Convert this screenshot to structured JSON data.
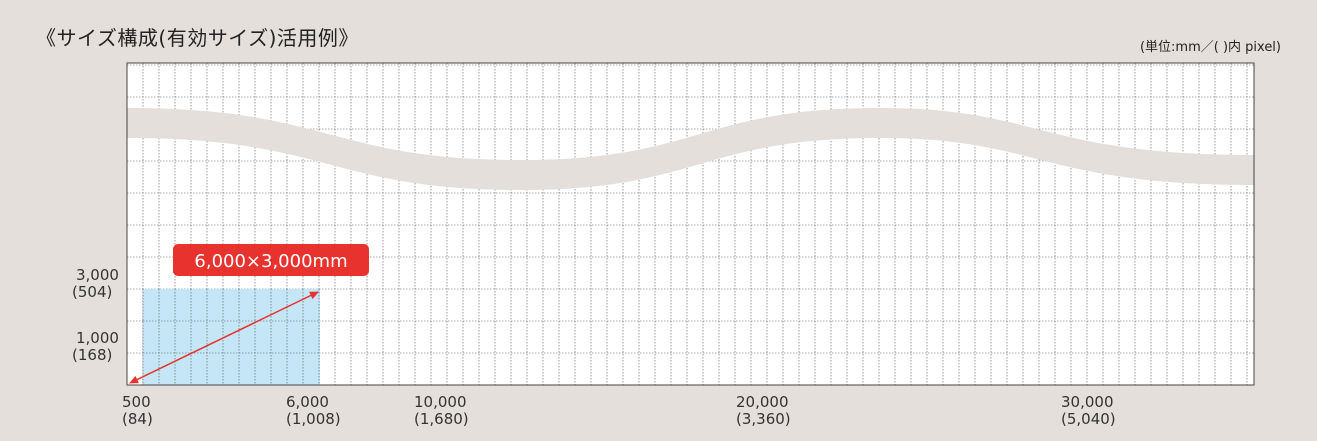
{
  "title": "《サイズ構成(有効サイズ)活用例》",
  "unit_note": "(単位:mm／( )内 pixel)",
  "callout": "6,000×3,000mm",
  "colors": {
    "background": "#e4dfdb",
    "grid_bg": "#ffffff",
    "grid_line": "#444444",
    "highlight": "#c4e6f6",
    "accent": "#e8322e"
  },
  "y_labels": [
    {
      "value": "3,000",
      "pixel": "(504)",
      "mm": 3000
    },
    {
      "value": "1,000",
      "pixel": "(168)",
      "mm": 1000
    }
  ],
  "x_labels": [
    {
      "value": "500",
      "pixel": "(84)",
      "mm": 500
    },
    {
      "value": "6,000",
      "pixel": "(1,008)",
      "mm": 6000
    },
    {
      "value": "10,000",
      "pixel": "(1,680)",
      "mm": 10000
    },
    {
      "value": "20,000",
      "pixel": "(3,360)",
      "mm": 20000
    },
    {
      "value": "30,000",
      "pixel": "(5,040)",
      "mm": 30000
    }
  ],
  "highlight_size_mm": {
    "width": 6000,
    "height": 3000
  }
}
